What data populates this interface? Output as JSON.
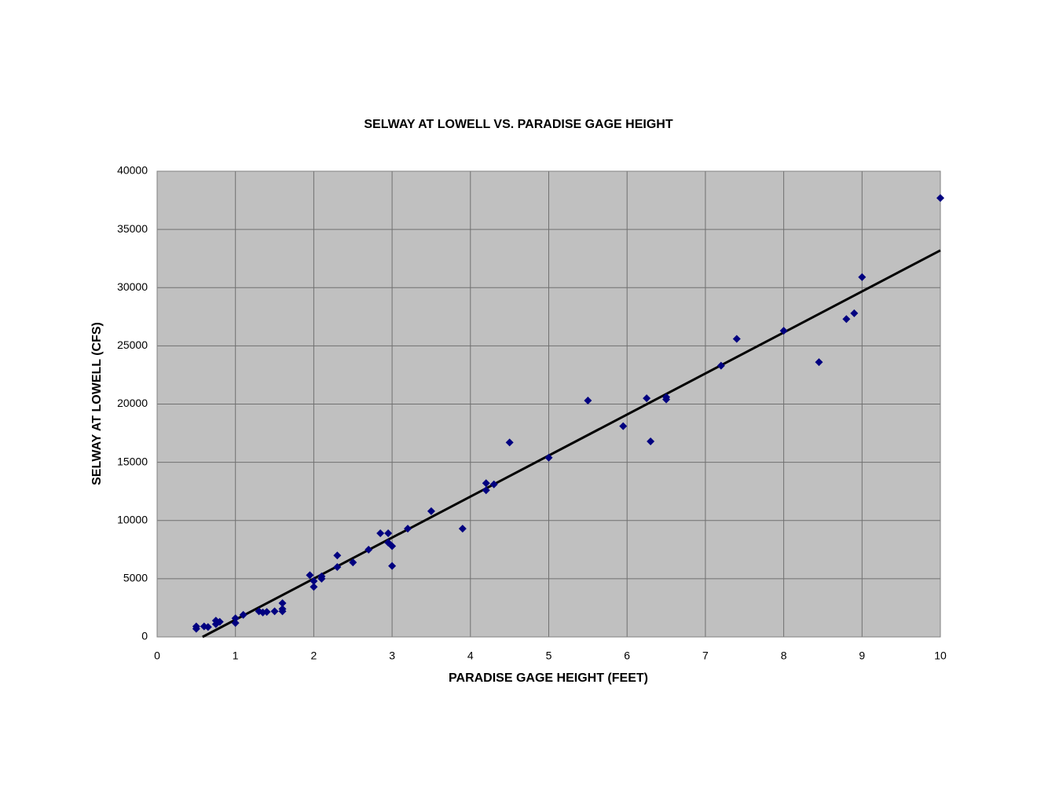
{
  "chart_data": {
    "type": "scatter",
    "title": "SELWAY AT LOWELL VS. PARADISE GAGE HEIGHT",
    "x_label": "PARADISE GAGE HEIGHT (FEET)",
    "y_label": "SELWAY AT LOWELL (CFS)",
    "xlim": [
      0,
      10
    ],
    "xticks": [
      0,
      1,
      2,
      3,
      4,
      5,
      6,
      7,
      8,
      9,
      10
    ],
    "ylim": [
      0,
      40000
    ],
    "yticks": [
      0,
      5000,
      10000,
      15000,
      20000,
      25000,
      30000,
      35000,
      40000
    ],
    "grid": true,
    "series": [
      {
        "color": "#000080",
        "x": [
          0.5,
          0.5,
          0.6,
          0.65,
          0.75,
          0.75,
          0.8,
          1.0,
          1.0,
          1.1,
          1.3,
          1.35,
          1.4,
          1.5,
          1.6,
          1.6,
          1.6,
          1.95,
          2.0,
          2.0,
          2.1,
          2.1,
          2.3,
          2.3,
          2.5,
          2.7,
          2.85,
          2.95,
          2.95,
          3.0,
          3.0,
          3.2,
          3.5,
          3.9,
          4.2,
          4.2,
          4.3,
          4.5,
          5.0,
          5.5,
          5.95,
          6.25,
          6.3,
          6.5,
          6.5,
          7.2,
          7.4,
          8.0,
          8.45,
          8.8,
          8.9,
          9.0,
          10
        ],
        "values": [
          900,
          700,
          900,
          850,
          1100,
          1400,
          1300,
          1200,
          1600,
          1900,
          2200,
          2100,
          2150,
          2200,
          2200,
          2400,
          2900,
          5300,
          4300,
          4800,
          5000,
          5200,
          6000,
          7000,
          6400,
          7500,
          8900,
          8900,
          8100,
          7800,
          6100,
          9300,
          10800,
          9300,
          12600,
          13200,
          13100,
          16700,
          15400,
          20300,
          18100,
          20500,
          16800,
          20400,
          20600,
          23300,
          25600,
          26300,
          23600,
          27300,
          27800,
          30900,
          37700
        ]
      }
    ],
    "trendline": {
      "color": "#000000",
      "x": [
        0.58,
        10
      ],
      "values": [
        0,
        33200
      ]
    }
  }
}
